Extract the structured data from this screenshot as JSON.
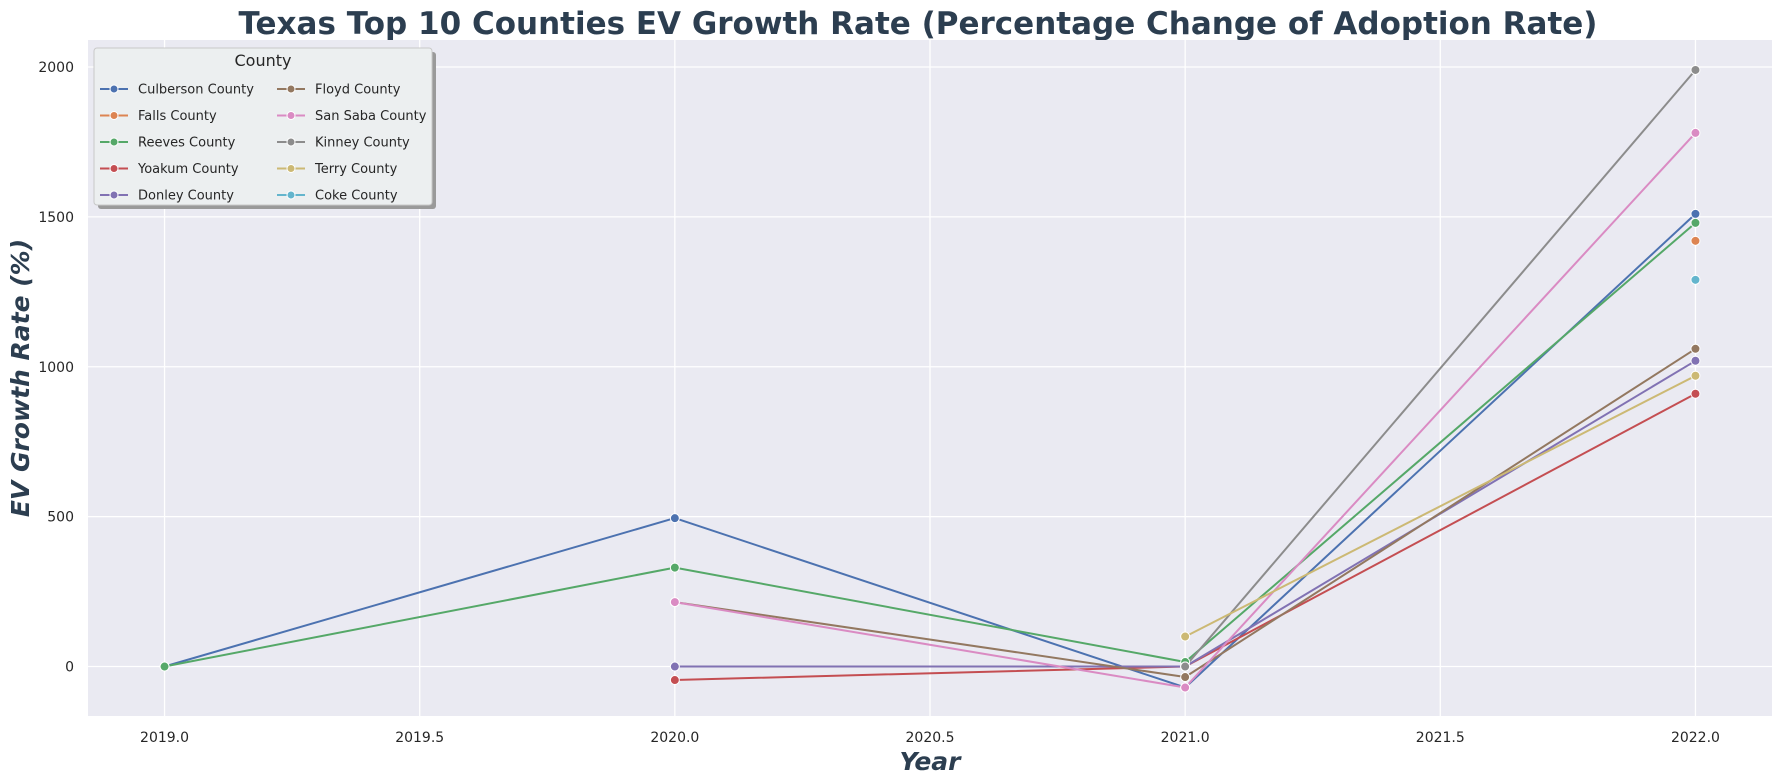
{
  "chart_data": {
    "type": "line",
    "title": "Texas Top 10 Counties EV Growth Rate (Percentage Change of Adoption Rate)",
    "xlabel": "Year",
    "ylabel": "EV Growth Rate (%)",
    "xlim": [
      2018.85,
      2022.15
    ],
    "ylim": [
      -165,
      2090
    ],
    "xticks": [
      2019.0,
      2019.5,
      2020.0,
      2020.5,
      2021.0,
      2021.5,
      2022.0
    ],
    "xtick_labels": [
      "2019.0",
      "2019.5",
      "2020.0",
      "2020.5",
      "2021.0",
      "2021.5",
      "2022.0"
    ],
    "yticks": [
      0,
      500,
      1000,
      1500,
      2000
    ],
    "ytick_labels": [
      "0",
      "500",
      "1000",
      "1500",
      "2000"
    ],
    "grid": true,
    "legend": {
      "title": "County",
      "placement": "top-left",
      "columns": 2
    },
    "series": [
      {
        "name": "Culberson County",
        "color": "#4c72b0",
        "points": [
          [
            2019,
            0
          ],
          [
            2020,
            495
          ],
          [
            2021,
            -70
          ],
          [
            2022,
            1510
          ]
        ]
      },
      {
        "name": "Falls County",
        "color": "#dd8452",
        "points": [
          [
            2022,
            1420
          ]
        ]
      },
      {
        "name": "Reeves County",
        "color": "#55a868",
        "points": [
          [
            2019,
            0
          ],
          [
            2020,
            330
          ],
          [
            2021,
            15
          ],
          [
            2022,
            1480
          ]
        ]
      },
      {
        "name": "Yoakum County",
        "color": "#c44e52",
        "points": [
          [
            2020,
            -45
          ],
          [
            2021,
            0
          ],
          [
            2022,
            910
          ]
        ]
      },
      {
        "name": "Donley County",
        "color": "#8172b3",
        "points": [
          [
            2020,
            0
          ],
          [
            2021,
            0
          ],
          [
            2022,
            1020
          ]
        ]
      },
      {
        "name": "Floyd County",
        "color": "#937860",
        "points": [
          [
            2020,
            215
          ],
          [
            2021,
            -35
          ],
          [
            2022,
            1060
          ]
        ]
      },
      {
        "name": "San Saba County",
        "color": "#da8bc3",
        "points": [
          [
            2020,
            215
          ],
          [
            2021,
            -70
          ],
          [
            2022,
            1780
          ]
        ]
      },
      {
        "name": "Kinney County",
        "color": "#8c8c8c",
        "points": [
          [
            2021,
            0
          ],
          [
            2022,
            1990
          ]
        ]
      },
      {
        "name": "Terry County",
        "color": "#ccb974",
        "points": [
          [
            2021,
            100
          ],
          [
            2022,
            970
          ]
        ]
      },
      {
        "name": "Coke County",
        "color": "#64b5cd",
        "points": [
          [
            2022,
            1290
          ]
        ]
      }
    ]
  }
}
